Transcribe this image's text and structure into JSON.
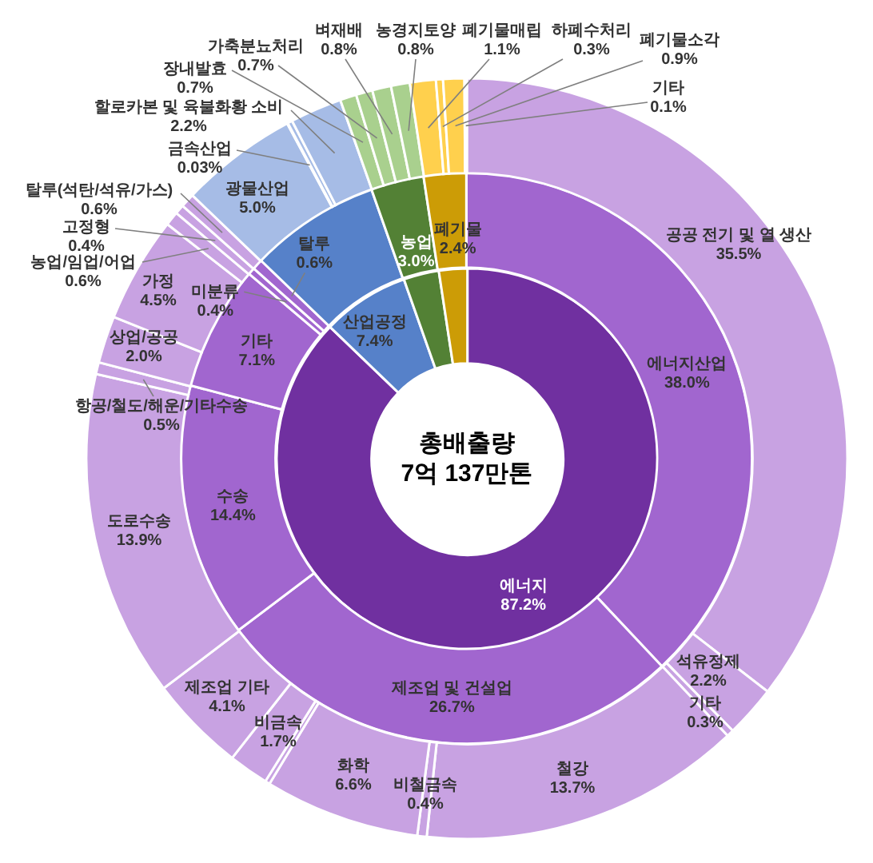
{
  "chart_data": [
    {
      "type": "donut",
      "title": "총배출량",
      "subtitle": "7억 137만톤",
      "categories": [
        "에너지",
        "산업공정",
        "농업",
        "폐기물"
      ],
      "values": [
        87.2,
        7.4,
        3.0,
        2.4
      ],
      "colors": [
        "#7030a0",
        "#5681c9",
        "#538135",
        "#cc9c06"
      ],
      "value_labels": [
        "87.2%",
        "7.4%",
        "3.0%",
        "2.4%"
      ]
    },
    {
      "type": "donut",
      "categories": [
        "에너지산업",
        "제조업 및 건설업",
        "수송",
        "기타",
        "미분류",
        "탈루",
        null,
        null,
        null
      ],
      "values": [
        38.0,
        26.7,
        14.4,
        7.1,
        0.4,
        0.6,
        7.4,
        3.0,
        2.4
      ],
      "colors": [
        "#a166cf",
        "#a166cf",
        "#a166cf",
        "#a166cf",
        "#a166cf",
        "#a166cf",
        "#5681c9",
        "#538135",
        "#cc9c06"
      ],
      "value_labels": [
        "38.0%",
        "26.7%",
        "14.4%",
        "7.1%",
        "0.4%",
        "0.6%",
        null,
        null,
        null
      ]
    },
    {
      "type": "donut",
      "categories": [
        "공공 전기 및 열 생산",
        "석유정제",
        "기타",
        "철강",
        "비철금속",
        "화학",
        null,
        "비금속",
        "제조업 기타",
        "도로수송",
        "항공/철도/해운/기타수송",
        "상업/공공",
        "가정",
        "농업/임업/어업",
        "고정형",
        "탈루(석탄/석유/가스)",
        "광물산업",
        "금속산업",
        null,
        "할로카본 및 육불화황 소비",
        "장내발효",
        "가축분뇨처리",
        "벼재배",
        "농경지토양",
        "폐기물매립",
        "하폐수처리",
        "폐기물소각",
        "기타"
      ],
      "values": [
        35.5,
        2.2,
        0.3,
        13.7,
        0.4,
        6.6,
        0.2,
        1.7,
        4.1,
        13.9,
        0.5,
        2.0,
        4.5,
        0.6,
        0.4,
        0.6,
        5.0,
        0.03,
        0.2,
        2.2,
        0.7,
        0.7,
        0.8,
        0.8,
        1.1,
        0.3,
        0.9,
        0.1
      ],
      "colors": [
        "#c8a2e2",
        "#c8a2e2",
        "#c8a2e2",
        "#c8a2e2",
        "#c8a2e2",
        "#c8a2e2",
        "#c8a2e2",
        "#c8a2e2",
        "#c8a2e2",
        "#c8a2e2",
        "#c8a2e2",
        "#c8a2e2",
        "#c8a2e2",
        "#c8a2e2",
        "#c8a2e2",
        "#c8a2e2",
        "#a6bce6",
        "#a6bce6",
        "#a6bce6",
        "#a6bce6",
        "#a9d08e",
        "#a9d08e",
        "#a9d08e",
        "#a9d08e",
        "#ffd04d",
        "#ffd04d",
        "#ffd04d",
        "#ffd04d"
      ],
      "value_labels": [
        "35.5%",
        "2.2%",
        "0.3%",
        "13.7%",
        "0.4%",
        "6.6%",
        null,
        "1.7%",
        "4.1%",
        "13.9%",
        "0.5%",
        "2.0%",
        "4.5%",
        "0.6%",
        "0.4%",
        "0.6%",
        "5.0%",
        "0.03%",
        null,
        "2.2%",
        "0.7%",
        "0.7%",
        "0.8%",
        "0.8%",
        "1.1%",
        "0.3%",
        "0.9%",
        "0.1%"
      ]
    }
  ]
}
